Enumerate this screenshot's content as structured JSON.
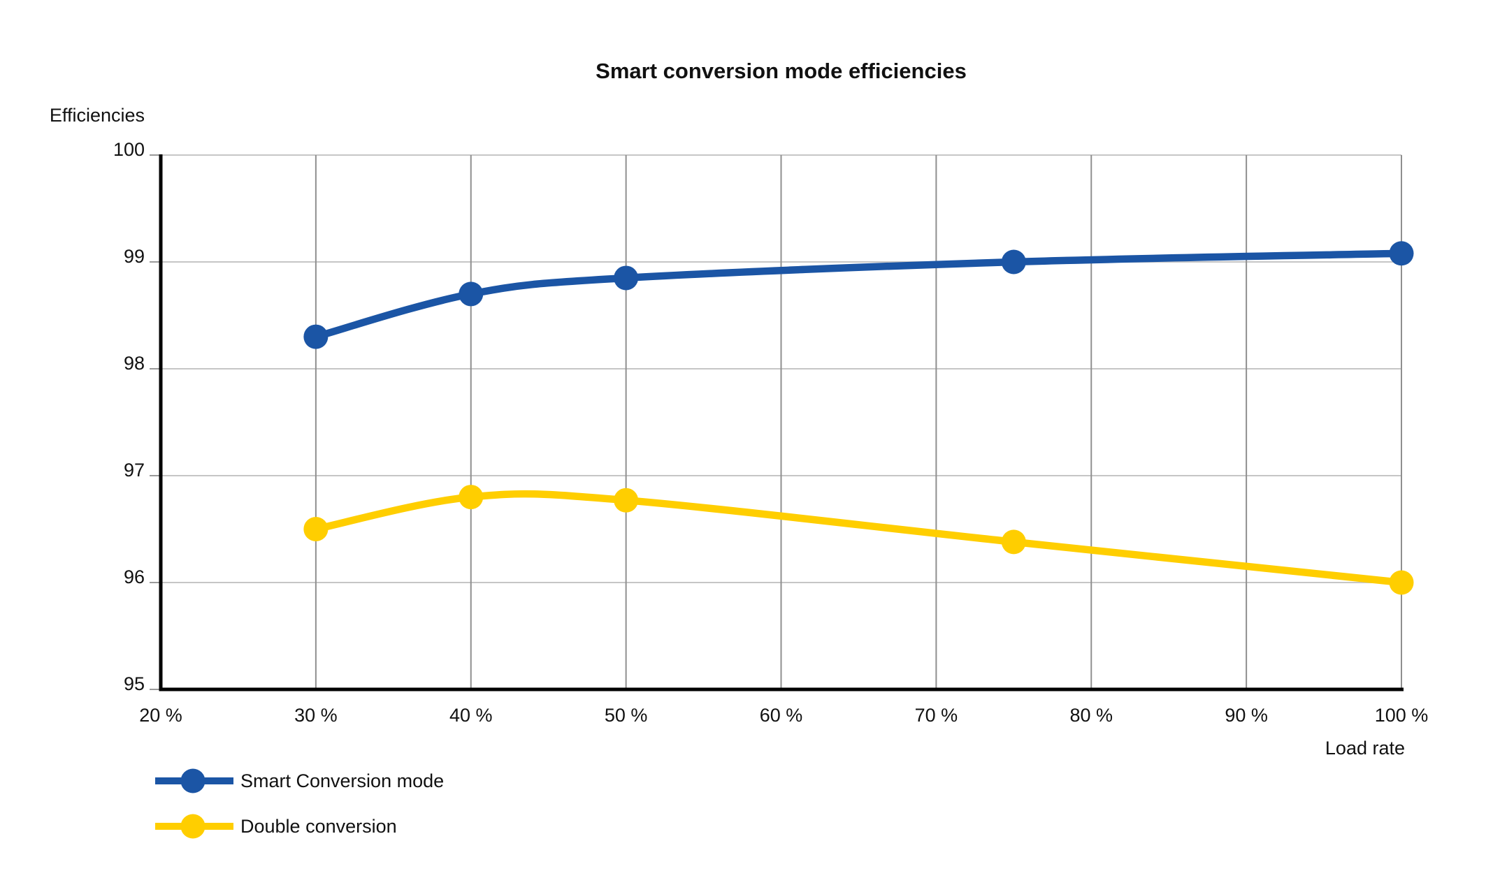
{
  "chart_data": {
    "type": "line",
    "title": "Smart conversion mode efficiencies",
    "ylabel": "Efficiencies",
    "xlabel": "Load rate",
    "xlim": [
      20,
      100
    ],
    "ylim": [
      95,
      100
    ],
    "grid_on": true,
    "legend_position": "bottom-left",
    "colors": {
      "horizontal_grid": "#c6c6c6",
      "vertical_grid": "#8f8f8f",
      "axis": "#000000",
      "tick": "#999999",
      "text": "#111111",
      "background": "#ffffff"
    },
    "x_ticks": [
      {
        "value": 20,
        "label": "20 %"
      },
      {
        "value": 30,
        "label": "30 %"
      },
      {
        "value": 40,
        "label": "40 %"
      },
      {
        "value": 50,
        "label": "50 %"
      },
      {
        "value": 60,
        "label": "60 %"
      },
      {
        "value": 70,
        "label": "70 %"
      },
      {
        "value": 80,
        "label": "80 %"
      },
      {
        "value": 90,
        "label": "90 %"
      },
      {
        "value": 100,
        "label": "100 %"
      }
    ],
    "y_ticks": [
      {
        "value": 100,
        "label": "100"
      },
      {
        "value": 99,
        "label": "99"
      },
      {
        "value": 98,
        "label": "98"
      },
      {
        "value": 97,
        "label": "97"
      },
      {
        "value": 96,
        "label": "96"
      },
      {
        "value": 95,
        "label": "95"
      }
    ],
    "series": [
      {
        "name": "Smart Conversion mode",
        "color": "#1B55A5",
        "x": [
          30,
          40,
          50,
          75,
          100
        ],
        "y": [
          98.3,
          98.7,
          98.85,
          99.0,
          99.08
        ]
      },
      {
        "name": "Double conversion",
        "color": "#FFCE00",
        "x": [
          30,
          40,
          50,
          75,
          100
        ],
        "y": [
          96.5,
          96.8,
          96.77,
          96.38,
          96.0
        ]
      }
    ]
  }
}
